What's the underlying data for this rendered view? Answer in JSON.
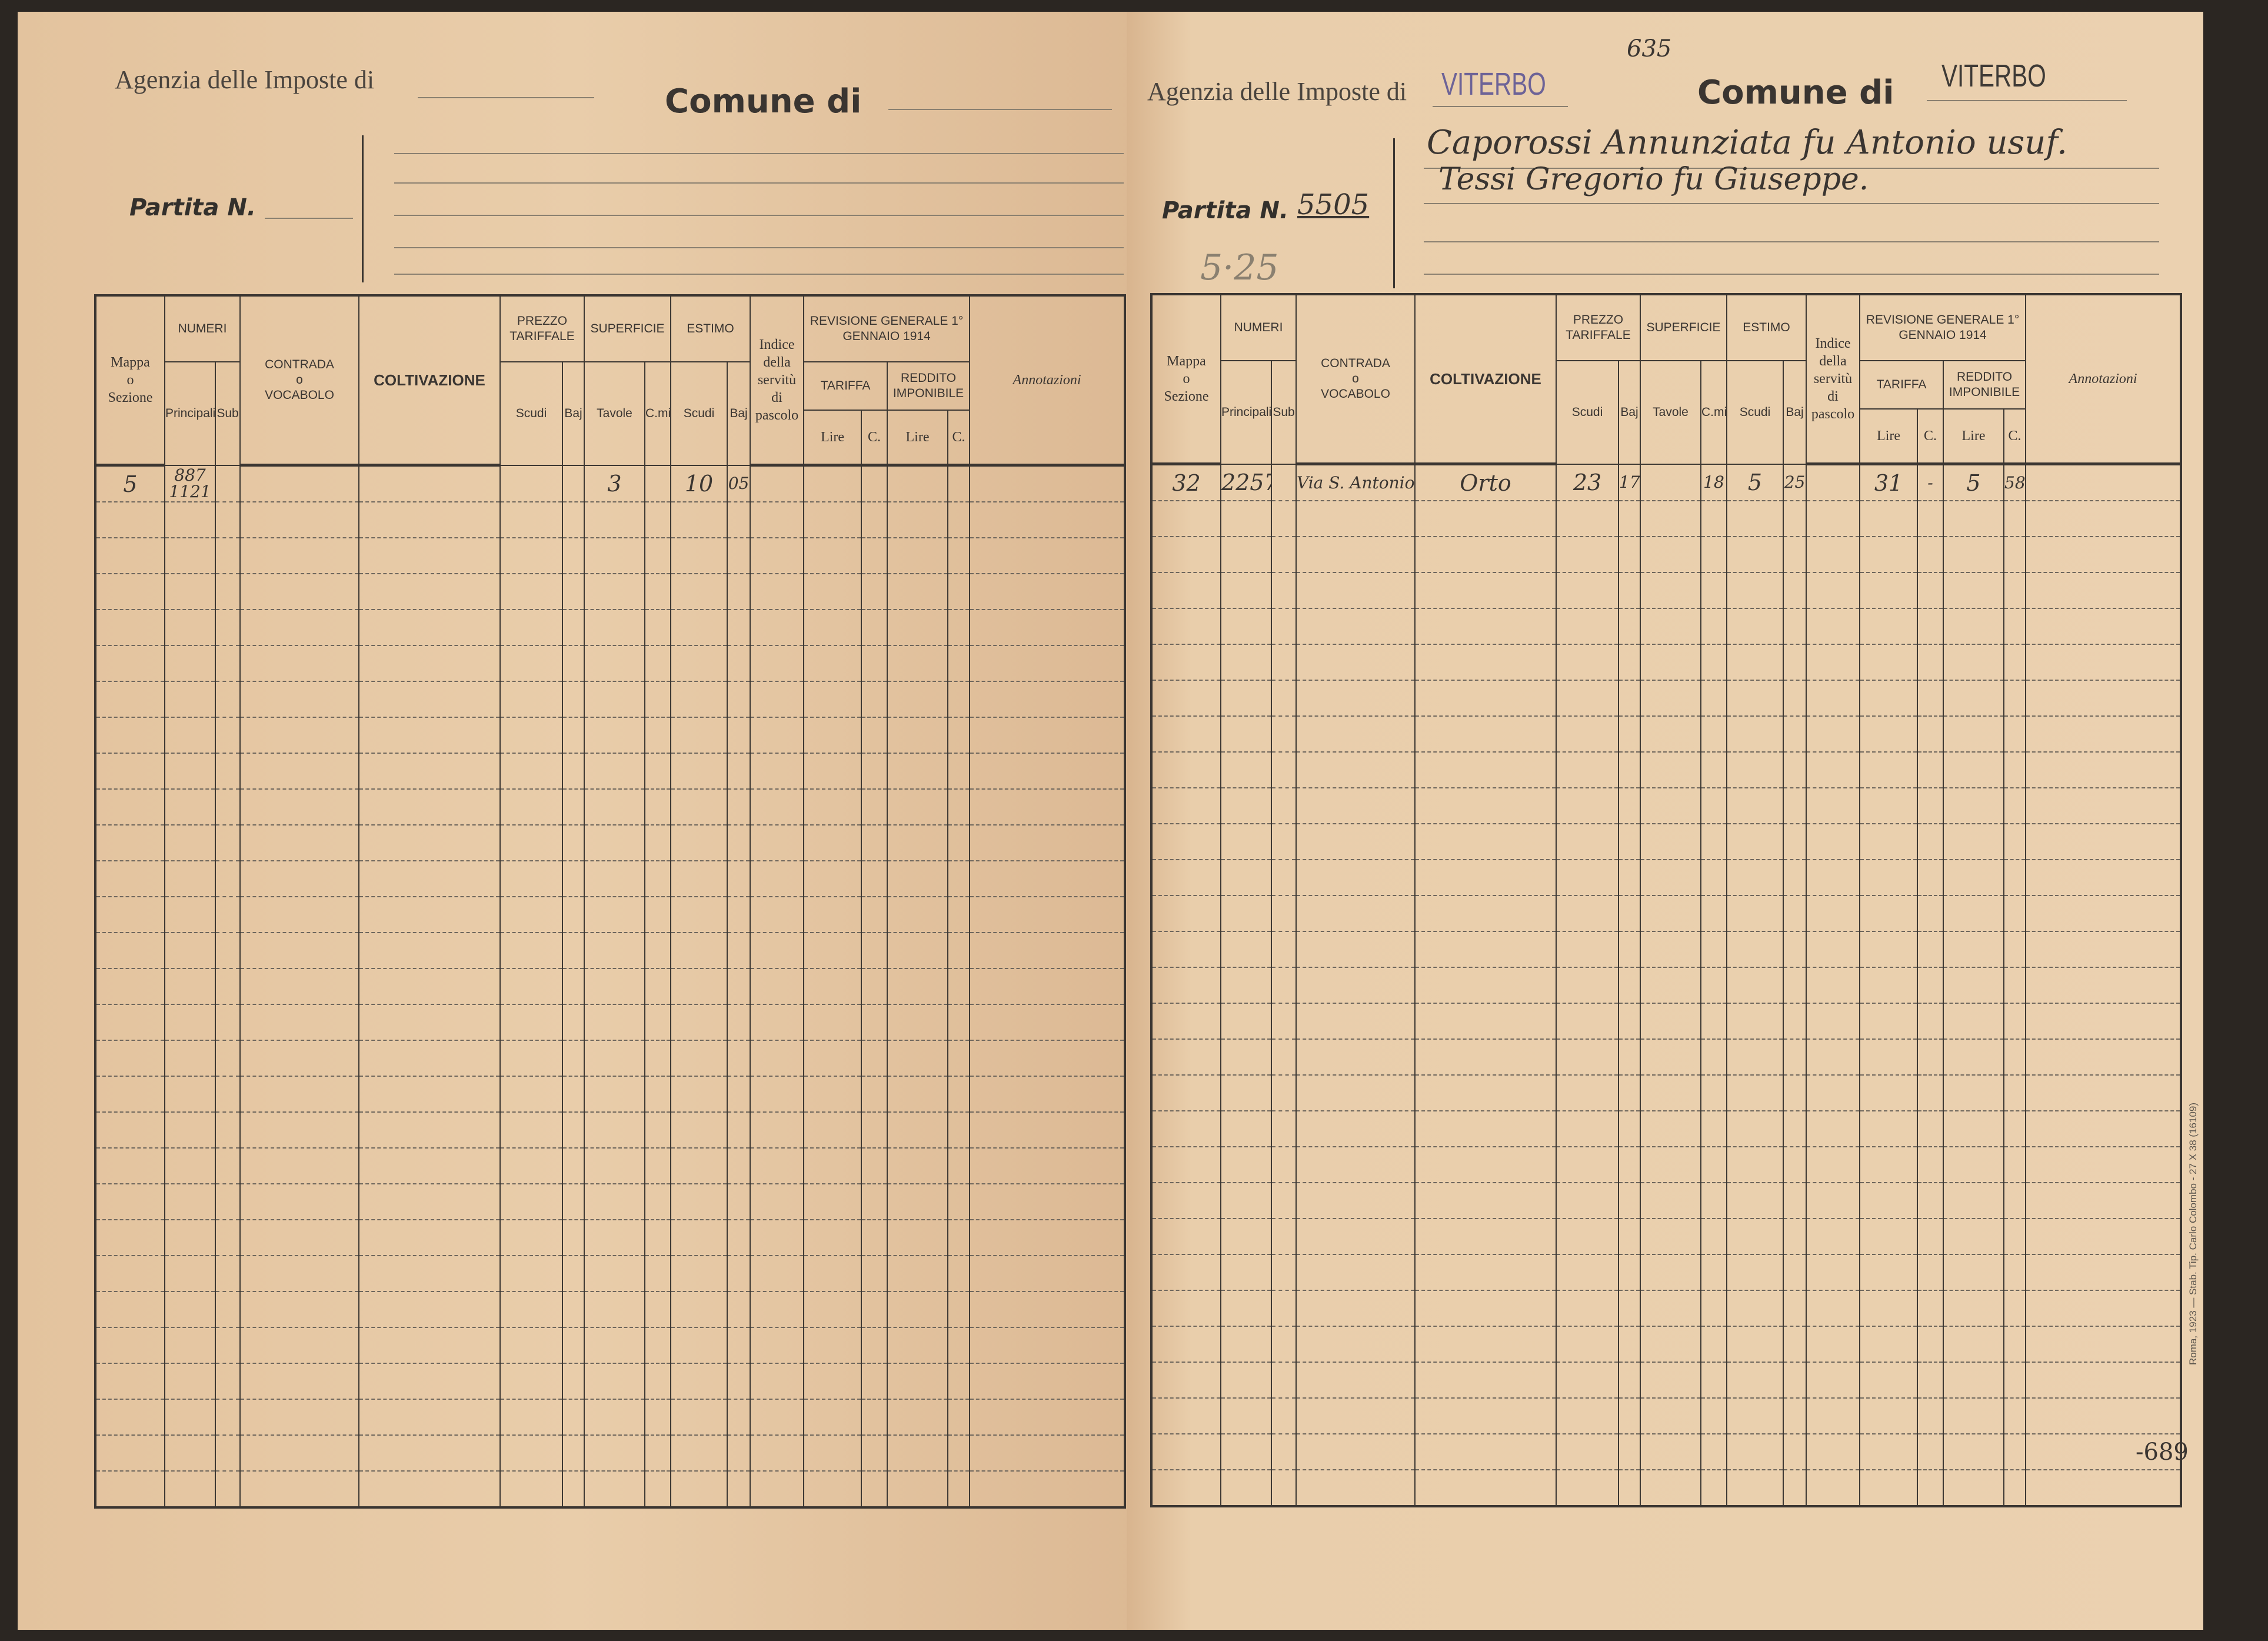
{
  "columns": {
    "mappa": [
      "Mappa",
      "o",
      "Sezione"
    ],
    "numeri": "NUMERI",
    "principali": "Principali",
    "sub": "Sub",
    "contrada": [
      "CONTRADA",
      "o",
      "VOCABOLO"
    ],
    "coltivazione": "COLTIVAZIONE",
    "prezzo": "PREZZO TARIFFALE",
    "superficie": "SUPERFICIE",
    "estimo": "ESTIMO",
    "scudi": "Scudi",
    "baj": "Baj",
    "tavole": "Tavole",
    "cmi": "C.mi",
    "indice": [
      "Indice",
      "della",
      "servitù",
      "di",
      "pascolo"
    ],
    "revisione": "REVISIONE GENERALE 1° GENNAIO 1914",
    "tariffa": "TARIFFA",
    "reddito": "REDDITO IMPONIBILE",
    "lire": "Lire",
    "c": "C.",
    "annotazioni": "Annotazioni"
  },
  "left_page": {
    "agenzia_label": "Agenzia delle Imposte di",
    "comune_label": "Comune di",
    "partita_label": "Partita N.",
    "rows": [
      {
        "mappa": "5",
        "principali": "887",
        "principali2": "1121",
        "sub": "",
        "contrada": "",
        "coltivazione": "",
        "p_scudi": "",
        "p_baj": "",
        "tavole": "3",
        "cmi": "",
        "e_scudi": "10",
        "e_baj": "05",
        "indice": "",
        "t_lire": "",
        "t_c": "",
        "r_lire": "",
        "r_c": "",
        "annotazioni": ""
      }
    ],
    "empty_rows": 28
  },
  "right_page": {
    "agenzia_label": "Agenzia delle Imposte di",
    "agenzia_value": "VITERBO",
    "comune_label": "Comune di",
    "comune_value": "VITERBO",
    "sheet_note": "635",
    "partita_label": "Partita N.",
    "partita_value": "5505",
    "partita_note": "5·25",
    "owners": [
      "Caporossi Annunziata fu Antonio usuf.",
      "Tessi Gregorio fu Giuseppe."
    ],
    "rows": [
      {
        "mappa": "32",
        "principali": "2257",
        "principali2": "",
        "sub": "",
        "contrada": "Via S. Antonio",
        "coltivazione": "Orto",
        "p_scudi": "23",
        "p_baj": "17",
        "tavole": "",
        "cmi": "18",
        "e_scudi": "5",
        "e_baj": "25",
        "indice": "",
        "t_lire": "31",
        "t_c": "-",
        "r_lire": "5",
        "r_c": "58",
        "annotazioni": ""
      }
    ],
    "empty_rows": 28,
    "page_number": "-689",
    "printer_note": "Roma, 1923 — Stab. Tip. Carlo Colombo - 27 X 38 (16109)"
  }
}
